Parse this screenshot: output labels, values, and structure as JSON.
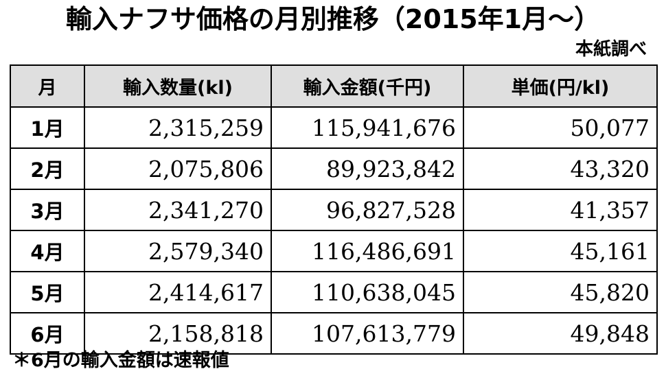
{
  "title": "輸入ナフサ価格の月別推移（2015年1月～）",
  "source": "本紙調べ",
  "table": {
    "headers": [
      "月",
      "輸入数量(kl)",
      "輸入金額(千円)",
      "単価(円/kl)"
    ],
    "rows": [
      {
        "month": "1月",
        "quantity": "2,315,259",
        "amount": "115,941,676",
        "unit_price": "50,077"
      },
      {
        "month": "2月",
        "quantity": "2,075,806",
        "amount": "89,923,842",
        "unit_price": "43,320"
      },
      {
        "month": "3月",
        "quantity": "2,341,270",
        "amount": "96,827,528",
        "unit_price": "41,357"
      },
      {
        "month": "4月",
        "quantity": "2,579,340",
        "amount": "116,486,691",
        "unit_price": "45,161"
      },
      {
        "month": "5月",
        "quantity": "2,414,617",
        "amount": "110,638,045",
        "unit_price": "45,820"
      },
      {
        "month": "6月",
        "quantity": "2,158,818",
        "amount": "107,613,779",
        "unit_price": "49,848"
      }
    ]
  },
  "footnote": "＊6月の輸入金額は速報値",
  "colors": {
    "header_bg": "#dfdfdf",
    "border": "#000000",
    "text": "#000000"
  }
}
